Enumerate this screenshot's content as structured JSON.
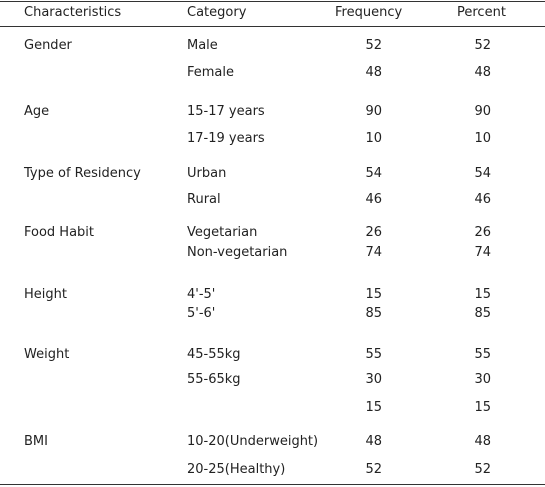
{
  "table": {
    "columns": [
      "Characteristics",
      "Category",
      "Frequency",
      "Percent"
    ],
    "rows": [
      [
        "Gender",
        "Male",
        52,
        52
      ],
      [
        null,
        "Female",
        48,
        48
      ],
      [
        "Age",
        "15-17 years",
        90,
        90
      ],
      [
        null,
        "17-19 years",
        10,
        10
      ],
      [
        "Type of Residency",
        "Urban",
        54,
        54
      ],
      [
        null,
        "Rural",
        46,
        46
      ],
      [
        "Food Habit",
        "Vegetarian",
        26,
        26
      ],
      [
        null,
        "Non-vegetarian",
        74,
        74
      ],
      [
        "Height",
        "4'-5'",
        15,
        15
      ],
      [
        null,
        "5'-6'",
        85,
        85
      ],
      [
        "Weight",
        "45-55kg",
        55,
        55
      ],
      [
        null,
        "55-65kg",
        30,
        30
      ],
      [
        null,
        null,
        15,
        15
      ],
      [
        "BMI",
        "10-20(Underweight)",
        48,
        48
      ],
      [
        null,
        "20-25(Healthy)",
        52,
        52
      ]
    ]
  }
}
